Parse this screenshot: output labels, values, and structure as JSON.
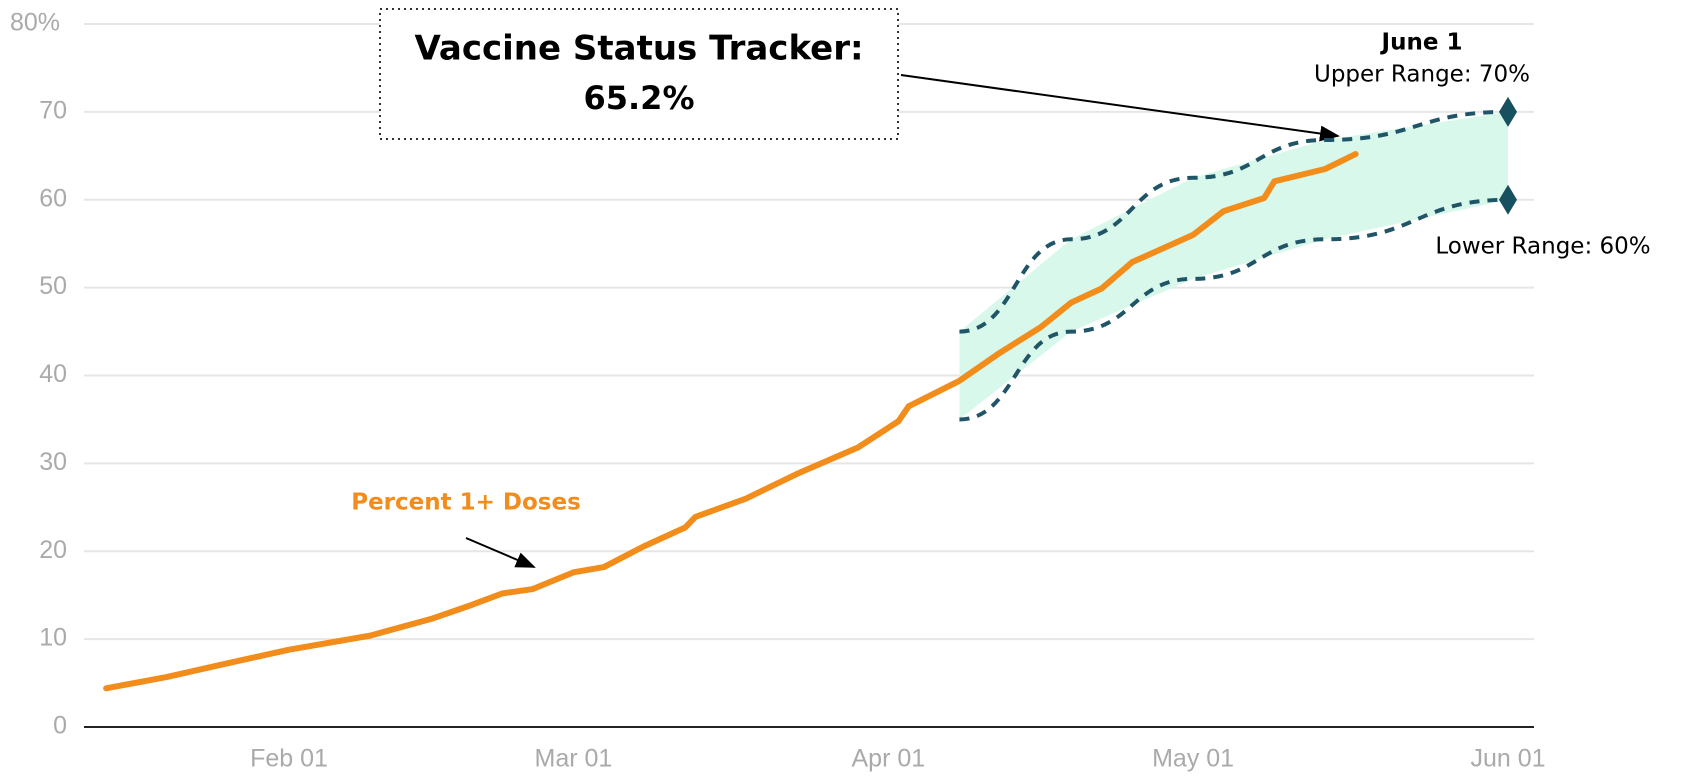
{
  "chart_data": {
    "type": "line",
    "x": [
      "01-14",
      "01-20",
      "01-25",
      "02-01",
      "02-09",
      "02-15",
      "02-19",
      "02-22",
      "02-25",
      "03-01",
      "03-04",
      "03-08",
      "03-12",
      "03-13",
      "03-18",
      "03-23",
      "03-29",
      "04-02",
      "04-03",
      "04-08",
      "04-12",
      "04-16",
      "04-19",
      "04-22",
      "04-25",
      "05-01",
      "05-04",
      "05-08",
      "05-09",
      "05-14",
      "05-17"
    ],
    "series": [
      {
        "name": "Percent 1+ Doses",
        "color": "#f28c1a",
        "values": [
          4.4,
          5.7,
          7.0,
          8.8,
          10.4,
          12.3,
          13.9,
          15.2,
          15.7,
          17.6,
          18.2,
          20.6,
          22.7,
          23.9,
          26.0,
          28.8,
          31.8,
          34.8,
          36.5,
          39.4,
          42.6,
          45.5,
          48.3,
          49.9,
          52.9,
          56.0,
          58.7,
          60.2,
          62.1,
          63.5,
          65.2
        ]
      }
    ],
    "band": {
      "x": [
        "04-08",
        "04-19",
        "05-01",
        "05-14",
        "06-01"
      ],
      "upper": [
        45,
        55.5,
        62.5,
        66.8,
        70
      ],
      "lower": [
        35,
        45,
        51,
        55.5,
        60
      ],
      "fill": "#d9f8ec",
      "line_color": "#1f5566",
      "marker_color": "#17505e"
    },
    "ylim": [
      0,
      80
    ],
    "yticks": [
      0,
      10,
      20,
      30,
      40,
      50,
      60,
      70,
      {
        "value": 80,
        "label": "80%"
      }
    ],
    "xticks": [
      {
        "value": "02-01",
        "label": "Feb 01"
      },
      {
        "value": "03-01",
        "label": "Mar 01"
      },
      {
        "value": "04-01",
        "label": "Apr 01"
      },
      {
        "value": "05-01",
        "label": "May 01"
      },
      {
        "value": "06-01",
        "label": "Jun 01"
      }
    ],
    "grid": true,
    "annotations": {
      "tracker_title": "Vaccine Status Tracker:",
      "tracker_value": "65.2%",
      "date_label": "June 1",
      "upper_label": "Upper Range: 70%",
      "lower_label": "Lower Range: 60%"
    }
  }
}
